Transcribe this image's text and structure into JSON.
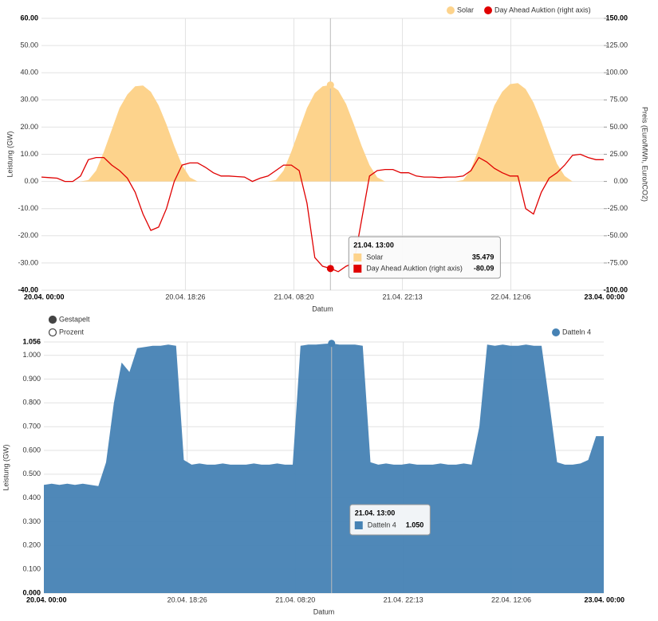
{
  "chart_data": [
    {
      "type": "line",
      "xlabel": "Datum",
      "ylabel": "Leistung (GW)",
      "y2label": "Preis (Euro/MWh, Euro/tCO2)",
      "x": [
        0,
        1,
        2,
        3,
        4,
        5,
        6,
        7,
        8,
        9,
        10,
        11,
        12,
        13,
        14,
        15,
        16,
        17,
        18,
        19,
        20,
        21,
        22,
        23,
        24,
        25,
        26,
        27,
        28,
        29,
        30,
        31,
        32,
        33,
        34,
        35,
        36,
        37,
        38,
        39,
        40,
        41,
        42,
        43,
        44,
        45,
        46,
        47,
        48,
        49,
        50,
        51,
        52,
        53,
        54,
        55,
        56,
        57,
        58,
        59,
        60,
        61,
        62,
        63,
        64,
        65,
        66,
        67,
        68,
        69,
        70,
        71,
        72
      ],
      "xlim": [
        0,
        72
      ],
      "xticks": [
        {
          "value": 0,
          "label": "20.04. 00:00"
        },
        {
          "value": 18.43,
          "label": "20.04. 18:26"
        },
        {
          "value": 32.33,
          "label": "21.04. 08:20"
        },
        {
          "value": 46.22,
          "label": "21.04. 22:13"
        },
        {
          "value": 60.1,
          "label": "22.04. 12:06"
        },
        {
          "value": 72,
          "label": "23.04. 00:00"
        }
      ],
      "ylim": [
        -40,
        60
      ],
      "yticks": [
        {
          "value": -40,
          "label": "-40.00"
        },
        {
          "value": -30,
          "label": "-30.00"
        },
        {
          "value": -20,
          "label": "-20.00"
        },
        {
          "value": -10,
          "label": "-10.00"
        },
        {
          "value": 0,
          "label": "0.00"
        },
        {
          "value": 10,
          "label": "10.00"
        },
        {
          "value": 20,
          "label": "20.00"
        },
        {
          "value": 30,
          "label": "30.00"
        },
        {
          "value": 40,
          "label": "40.00"
        },
        {
          "value": 50,
          "label": "50.00"
        },
        {
          "value": 60,
          "label": "60.00"
        }
      ],
      "y2lim": [
        -100,
        150
      ],
      "y2ticks": [
        {
          "value": -100,
          "label": "-100.00"
        },
        {
          "value": -75,
          "label": "-75.00"
        },
        {
          "value": -50,
          "label": "-50.00"
        },
        {
          "value": -25,
          "label": "-25.00"
        },
        {
          "value": 0,
          "label": "0.00"
        },
        {
          "value": 25,
          "label": "25.00"
        },
        {
          "value": 50,
          "label": "50.00"
        },
        {
          "value": 75,
          "label": "75.00"
        },
        {
          "value": 100,
          "label": "100.00"
        },
        {
          "value": 125,
          "label": "125.00"
        },
        {
          "value": 150,
          "label": "150.00"
        }
      ],
      "grid": true,
      "legend": "top-right",
      "series": [
        {
          "name": "Solar",
          "type": "area",
          "color": "#fdd38c",
          "values": [
            0,
            0,
            0,
            0,
            0,
            0,
            0.5,
            4,
            11,
            19,
            27,
            32,
            35,
            35.3,
            33,
            28,
            21,
            13,
            6,
            1.5,
            0,
            0,
            0,
            0,
            0,
            0,
            0,
            0,
            0,
            0,
            0.5,
            4,
            11,
            19,
            27,
            32.5,
            35,
            35.479,
            33.5,
            28.5,
            21,
            13,
            6,
            1.5,
            0,
            0,
            0,
            0,
            0,
            0,
            0,
            0,
            0,
            0,
            0.5,
            4.5,
            12,
            20,
            28,
            33,
            35.8,
            36.2,
            34,
            29,
            22,
            14,
            6.5,
            2,
            0,
            0,
            0,
            0,
            0
          ]
        },
        {
          "name": "Day Ahead Auktion (right axis)",
          "type": "line",
          "axis": "y2",
          "color": "#e00000",
          "values": [
            4,
            3.5,
            3,
            0,
            0,
            5,
            20,
            22,
            22,
            15,
            10,
            3,
            -10,
            -30,
            -45,
            -42,
            -25,
            0,
            15,
            17,
            17,
            13,
            8,
            5,
            5,
            4.5,
            4,
            0,
            3,
            5,
            10,
            15,
            15,
            10,
            -20,
            -70,
            -78,
            -80.09,
            -83,
            -78,
            -75,
            -35,
            5,
            10,
            11,
            11,
            8,
            8,
            5,
            4,
            4,
            3.5,
            4,
            4,
            5,
            10,
            22,
            18,
            12,
            8,
            5,
            5,
            -25,
            -30,
            -10,
            3,
            8,
            15,
            24,
            25,
            22,
            20,
            20
          ]
        }
      ],
      "tooltip": {
        "title": "21.04. 13:00",
        "x": 37,
        "values": [
          35.479,
          -80.09
        ]
      }
    },
    {
      "type": "area",
      "xlabel": "Datum",
      "ylabel": "Leistung (GW)",
      "options": [
        "Gestapelt",
        "Prozent"
      ],
      "x": [
        0,
        1,
        2,
        3,
        4,
        5,
        6,
        7,
        8,
        9,
        10,
        11,
        12,
        13,
        14,
        15,
        16,
        17,
        18,
        19,
        20,
        21,
        22,
        23,
        24,
        25,
        26,
        27,
        28,
        29,
        30,
        31,
        32,
        33,
        34,
        35,
        36,
        37,
        38,
        39,
        40,
        41,
        42,
        43,
        44,
        45,
        46,
        47,
        48,
        49,
        50,
        51,
        52,
        53,
        54,
        55,
        56,
        57,
        58,
        59,
        60,
        61,
        62,
        63,
        64,
        65,
        66,
        67,
        68,
        69,
        70,
        71,
        72
      ],
      "xlim": [
        0,
        72
      ],
      "xticks": [
        {
          "value": 0,
          "label": "20.04. 00:00"
        },
        {
          "value": 18.43,
          "label": "20.04. 18:26"
        },
        {
          "value": 32.33,
          "label": "21.04. 08:20"
        },
        {
          "value": 46.22,
          "label": "21.04. 22:13"
        },
        {
          "value": 60.1,
          "label": "22.04. 12:06"
        },
        {
          "value": 72,
          "label": "23.04. 00:00"
        }
      ],
      "ylim": [
        0,
        1.056
      ],
      "yticks": [
        {
          "value": 0,
          "label": "0.000"
        },
        {
          "value": 0.1,
          "label": "0.100"
        },
        {
          "value": 0.2,
          "label": "0.200"
        },
        {
          "value": 0.3,
          "label": "0.300"
        },
        {
          "value": 0.4,
          "label": "0.400"
        },
        {
          "value": 0.5,
          "label": "0.500"
        },
        {
          "value": 0.6,
          "label": "0.600"
        },
        {
          "value": 0.7,
          "label": "0.700"
        },
        {
          "value": 0.8,
          "label": "0.800"
        },
        {
          "value": 0.9,
          "label": "0.900"
        },
        {
          "value": 1,
          "label": "1.000"
        },
        {
          "value": 1.056,
          "label": "1.056"
        }
      ],
      "grid": true,
      "legend": "top-right",
      "series": [
        {
          "name": "Datteln 4",
          "type": "area",
          "color": "#4682b4",
          "values": [
            0.455,
            0.46,
            0.455,
            0.46,
            0.455,
            0.46,
            0.455,
            0.45,
            0.55,
            0.8,
            0.97,
            0.93,
            1.03,
            1.035,
            1.04,
            1.04,
            1.045,
            1.04,
            0.56,
            0.54,
            0.545,
            0.54,
            0.54,
            0.545,
            0.54,
            0.54,
            0.54,
            0.545,
            0.54,
            0.54,
            0.545,
            0.54,
            0.54,
            1.04,
            1.045,
            1.045,
            1.048,
            1.05,
            1.045,
            1.045,
            1.045,
            1.04,
            0.55,
            0.54,
            0.545,
            0.54,
            0.54,
            0.545,
            0.54,
            0.54,
            0.54,
            0.545,
            0.54,
            0.54,
            0.545,
            0.54,
            0.7,
            1.045,
            1.04,
            1.045,
            1.04,
            1.04,
            1.045,
            1.04,
            1.04,
            0.8,
            0.55,
            0.54,
            0.54,
            0.545,
            0.56,
            0.66,
            0.66
          ]
        }
      ],
      "tooltip": {
        "title": "21.04. 13:00",
        "x": 37,
        "values": [
          1.05
        ],
        "value_labels": [
          "1.050"
        ]
      }
    }
  ]
}
